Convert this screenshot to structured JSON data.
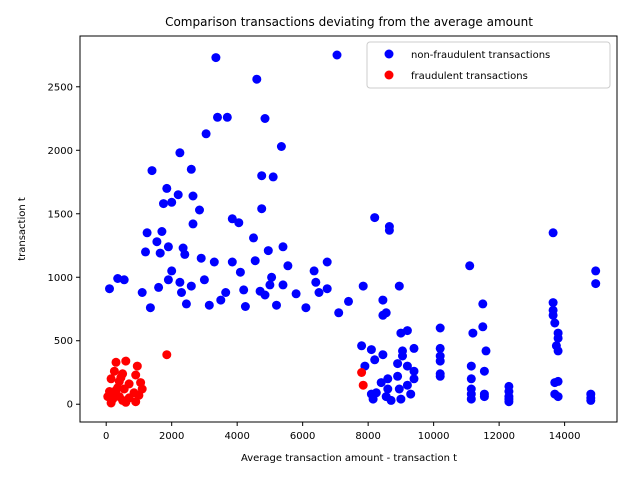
{
  "chart_data": {
    "type": "scatter",
    "title": "Comparison transactions deviating from the average amount",
    "xlabel": "Average transaction amount - transaction t",
    "ylabel": "transaction t",
    "xlim": [
      -800,
      15600
    ],
    "ylim": [
      -140,
      2900
    ],
    "xticks": [
      0,
      2000,
      4000,
      6000,
      8000,
      10000,
      12000,
      14000
    ],
    "yticks": [
      0,
      500,
      1000,
      1500,
      2000,
      2500
    ],
    "grid": false,
    "legend_position": "top-right",
    "series": [
      {
        "name": "non-fraudulent transactions",
        "color": "#0000ff",
        "points": [
          [
            3350,
            2730
          ],
          [
            7050,
            2750
          ],
          [
            4600,
            2560
          ],
          [
            3400,
            2260
          ],
          [
            3700,
            2260
          ],
          [
            4850,
            2250
          ],
          [
            3050,
            2130
          ],
          [
            5350,
            2030
          ],
          [
            2250,
            1980
          ],
          [
            2600,
            1850
          ],
          [
            1400,
            1840
          ],
          [
            4750,
            1800
          ],
          [
            5100,
            1790
          ],
          [
            1850,
            1700
          ],
          [
            2200,
            1650
          ],
          [
            2650,
            1640
          ],
          [
            1750,
            1580
          ],
          [
            2000,
            1590
          ],
          [
            2850,
            1530
          ],
          [
            4750,
            1540
          ],
          [
            8200,
            1470
          ],
          [
            3850,
            1460
          ],
          [
            4050,
            1430
          ],
          [
            2650,
            1420
          ],
          [
            8650,
            1400
          ],
          [
            8650,
            1370
          ],
          [
            13650,
            1350
          ],
          [
            1250,
            1350
          ],
          [
            1700,
            1360
          ],
          [
            4500,
            1310
          ],
          [
            1550,
            1280
          ],
          [
            1900,
            1240
          ],
          [
            2350,
            1230
          ],
          [
            5400,
            1240
          ],
          [
            4950,
            1210
          ],
          [
            1200,
            1200
          ],
          [
            1650,
            1190
          ],
          [
            2400,
            1180
          ],
          [
            2900,
            1150
          ],
          [
            3300,
            1120
          ],
          [
            4550,
            1130
          ],
          [
            6750,
            1120
          ],
          [
            3850,
            1120
          ],
          [
            11100,
            1090
          ],
          [
            5550,
            1090
          ],
          [
            6350,
            1050
          ],
          [
            2000,
            1050
          ],
          [
            4100,
            1040
          ],
          [
            14950,
            1050
          ],
          [
            14950,
            950
          ],
          [
            5050,
            1000
          ],
          [
            350,
            990
          ],
          [
            550,
            980
          ],
          [
            1900,
            980
          ],
          [
            3000,
            980
          ],
          [
            2250,
            960
          ],
          [
            6400,
            960
          ],
          [
            5000,
            940
          ],
          [
            5400,
            940
          ],
          [
            2600,
            930
          ],
          [
            8950,
            930
          ],
          [
            7850,
            930
          ],
          [
            1600,
            920
          ],
          [
            100,
            910
          ],
          [
            6750,
            910
          ],
          [
            4200,
            900
          ],
          [
            4700,
            890
          ],
          [
            2300,
            880
          ],
          [
            1100,
            880
          ],
          [
            3650,
            880
          ],
          [
            6500,
            880
          ],
          [
            8450,
            820
          ],
          [
            5800,
            870
          ],
          [
            4850,
            860
          ],
          [
            3500,
            820
          ],
          [
            7400,
            810
          ],
          [
            11500,
            790
          ],
          [
            13650,
            800
          ],
          [
            5200,
            780
          ],
          [
            2450,
            790
          ],
          [
            3150,
            780
          ],
          [
            4250,
            770
          ],
          [
            1350,
            760
          ],
          [
            6100,
            760
          ],
          [
            7100,
            720
          ],
          [
            8550,
            720
          ],
          [
            8450,
            700
          ],
          [
            10200,
            600
          ],
          [
            11500,
            610
          ],
          [
            13650,
            740
          ],
          [
            13650,
            700
          ],
          [
            13700,
            640
          ],
          [
            11200,
            560
          ],
          [
            13800,
            560
          ],
          [
            13800,
            520
          ],
          [
            9000,
            560
          ],
          [
            9200,
            580
          ],
          [
            7800,
            460
          ],
          [
            10200,
            440
          ],
          [
            11600,
            420
          ],
          [
            13750,
            460
          ],
          [
            13800,
            420
          ],
          [
            10200,
            380
          ],
          [
            10200,
            340
          ],
          [
            11150,
            300
          ],
          [
            11550,
            260
          ],
          [
            10200,
            240
          ],
          [
            10200,
            220
          ],
          [
            11150,
            200
          ],
          [
            13700,
            170
          ],
          [
            13800,
            180
          ],
          [
            12300,
            140
          ],
          [
            12300,
            100
          ],
          [
            11150,
            120
          ],
          [
            11150,
            80
          ],
          [
            11550,
            80
          ],
          [
            11550,
            60
          ],
          [
            13700,
            80
          ],
          [
            13800,
            60
          ],
          [
            14800,
            80
          ],
          [
            14800,
            50
          ],
          [
            14800,
            30
          ],
          [
            12300,
            60
          ],
          [
            12300,
            40
          ],
          [
            11150,
            40
          ],
          [
            12300,
            20
          ],
          [
            9050,
            420
          ],
          [
            9400,
            440
          ],
          [
            9050,
            380
          ],
          [
            8900,
            320
          ],
          [
            9200,
            300
          ],
          [
            9400,
            260
          ],
          [
            8900,
            220
          ],
          [
            9400,
            200
          ],
          [
            9200,
            150
          ],
          [
            8950,
            120
          ],
          [
            9300,
            80
          ],
          [
            9000,
            40
          ],
          [
            8600,
            200
          ],
          [
            8400,
            170
          ],
          [
            8600,
            120
          ],
          [
            8250,
            90
          ],
          [
            8550,
            60
          ],
          [
            8700,
            30
          ],
          [
            8100,
            430
          ],
          [
            8450,
            390
          ],
          [
            8200,
            350
          ],
          [
            7900,
            300
          ],
          [
            8100,
            80
          ],
          [
            8150,
            40
          ]
        ]
      },
      {
        "name": "fraudulent transactions",
        "color": "#ff0000",
        "points": [
          [
            1850,
            390
          ],
          [
            7800,
            250
          ],
          [
            7850,
            150
          ],
          [
            300,
            330
          ],
          [
            600,
            340
          ],
          [
            950,
            300
          ],
          [
            250,
            260
          ],
          [
            500,
            240
          ],
          [
            900,
            230
          ],
          [
            150,
            200
          ],
          [
            400,
            180
          ],
          [
            700,
            160
          ],
          [
            1050,
            170
          ],
          [
            1100,
            120
          ],
          [
            300,
            110
          ],
          [
            550,
            120
          ],
          [
            850,
            90
          ],
          [
            150,
            80
          ],
          [
            400,
            60
          ],
          [
            700,
            50
          ],
          [
            1000,
            70
          ],
          [
            200,
            40
          ],
          [
            500,
            30
          ],
          [
            150,
            10
          ],
          [
            600,
            15
          ],
          [
            900,
            20
          ],
          [
            350,
            130
          ],
          [
            50,
            60
          ],
          [
            100,
            100
          ],
          [
            450,
            210
          ]
        ]
      }
    ]
  }
}
